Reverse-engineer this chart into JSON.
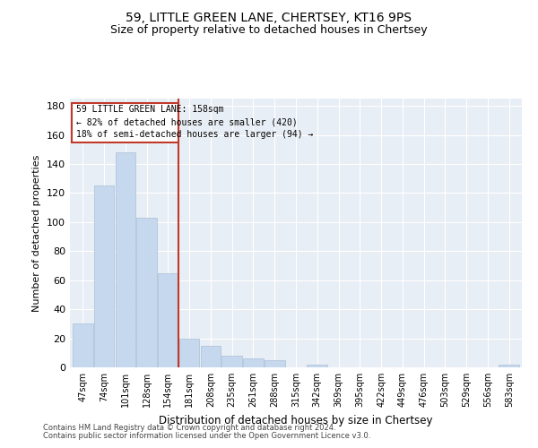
{
  "title": "59, LITTLE GREEN LANE, CHERTSEY, KT16 9PS",
  "subtitle": "Size of property relative to detached houses in Chertsey",
  "xlabel": "Distribution of detached houses by size in Chertsey",
  "ylabel": "Number of detached properties",
  "categories": [
    "47sqm",
    "74sqm",
    "101sqm",
    "128sqm",
    "154sqm",
    "181sqm",
    "208sqm",
    "235sqm",
    "261sqm",
    "288sqm",
    "315sqm",
    "342sqm",
    "369sqm",
    "395sqm",
    "422sqm",
    "449sqm",
    "476sqm",
    "503sqm",
    "529sqm",
    "556sqm",
    "583sqm"
  ],
  "values": [
    30,
    125,
    148,
    103,
    65,
    20,
    15,
    8,
    6,
    5,
    0,
    2,
    0,
    0,
    0,
    0,
    0,
    0,
    0,
    0,
    2
  ],
  "bar_color": "#c5d8ed",
  "bar_edge_color": "#aabfd6",
  "highlight_line_color": "#c0392b",
  "annotation_box_color": "#c0392b",
  "background_color": "#e8eef5",
  "ylim": [
    0,
    185
  ],
  "yticks": [
    0,
    20,
    40,
    60,
    80,
    100,
    120,
    140,
    160,
    180
  ],
  "footer_line1": "Contains HM Land Registry data © Crown copyright and database right 2024.",
  "footer_line2": "Contains public sector information licensed under the Open Government Licence v3.0.",
  "title_fontsize": 10,
  "subtitle_fontsize": 9
}
